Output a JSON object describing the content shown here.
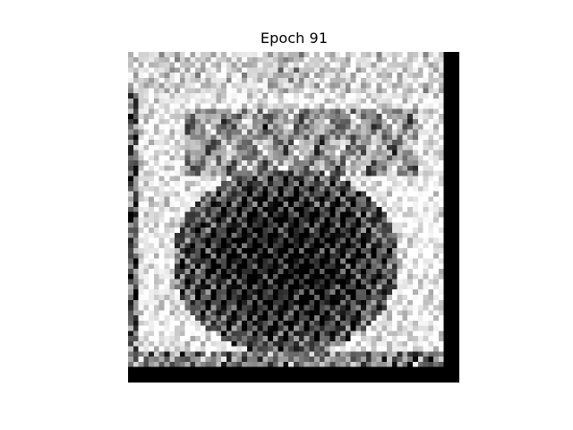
{
  "figure": {
    "title": "Epoch 91"
  },
  "colors": {
    "background": "#ffffff",
    "ink": "#000000"
  }
}
